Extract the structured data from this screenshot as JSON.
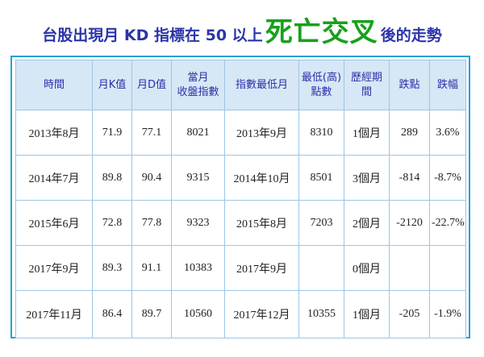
{
  "title": {
    "prefix": "台股出現月 KD 指標在 50 以上",
    "highlight": "死亡交叉",
    "suffix": "後的走勢",
    "colors": {
      "text": "#2b35a8",
      "highlight": "#17a11c"
    }
  },
  "table": {
    "headers": [
      "時間",
      "月K值",
      "月D值",
      "當月\n收盤指數",
      "指數最低月",
      "最低(高)\n點數",
      "歷經期間",
      "跌點",
      "跌幅"
    ],
    "rows": [
      [
        "2013年8月",
        "71.9",
        "77.1",
        "8021",
        "2013年9月",
        "8310",
        "1個月",
        "289",
        "3.6%"
      ],
      [
        "2014年7月",
        "89.8",
        "90.4",
        "9315",
        "2014年10月",
        "8501",
        "3個月",
        "-814",
        "-8.7%"
      ],
      [
        "2015年6月",
        "72.8",
        "77.8",
        "9323",
        "2015年8月",
        "7203",
        "2個月",
        "-2120",
        "-22.7%"
      ],
      [
        "2017年9月",
        "89.3",
        "91.1",
        "10383",
        "2017年9月",
        "",
        "0個月",
        "",
        ""
      ],
      [
        "2017年11月",
        "86.4",
        "89.7",
        "10560",
        "2017年12月",
        "10355",
        "1個月",
        "-205",
        "-1.9%"
      ]
    ],
    "colors": {
      "up": "#e8211c",
      "down": "#1f9a32",
      "header_bg": "#d7e7f5",
      "frame": "#2a9fd8"
    }
  }
}
